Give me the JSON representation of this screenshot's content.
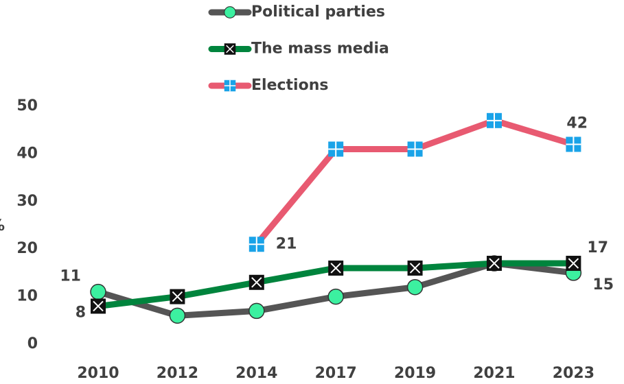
{
  "chart_data": {
    "type": "line",
    "y_label": "%",
    "categories": [
      "2010",
      "2012",
      "2014",
      "2017",
      "2019",
      "2021",
      "2023"
    ],
    "series": [
      {
        "name": "Political parties",
        "color": "#555555",
        "marker": "circle",
        "marker_color": "#3CF0A0",
        "values": [
          11,
          6,
          7,
          10,
          12,
          17,
          15
        ],
        "value_labels": [
          "11",
          null,
          null,
          null,
          null,
          null,
          "15"
        ]
      },
      {
        "name": "The mass media",
        "color": "#00843D",
        "marker": "x-square",
        "marker_color": "#111111",
        "values": [
          8,
          10,
          13,
          16,
          16,
          17,
          17
        ],
        "value_labels": [
          "8",
          null,
          null,
          null,
          null,
          null,
          "17"
        ]
      },
      {
        "name": "Elections",
        "color": "#E85A71",
        "marker": "plus-square",
        "marker_color": "#1AA3E8",
        "values": [
          null,
          null,
          21,
          41,
          41,
          47,
          42
        ],
        "value_labels": [
          null,
          null,
          "21",
          null,
          null,
          null,
          "42"
        ]
      }
    ],
    "ylim": [
      0,
      50
    ],
    "yticks": [
      0,
      10,
      20,
      30,
      40,
      50
    ],
    "grid": false
  }
}
